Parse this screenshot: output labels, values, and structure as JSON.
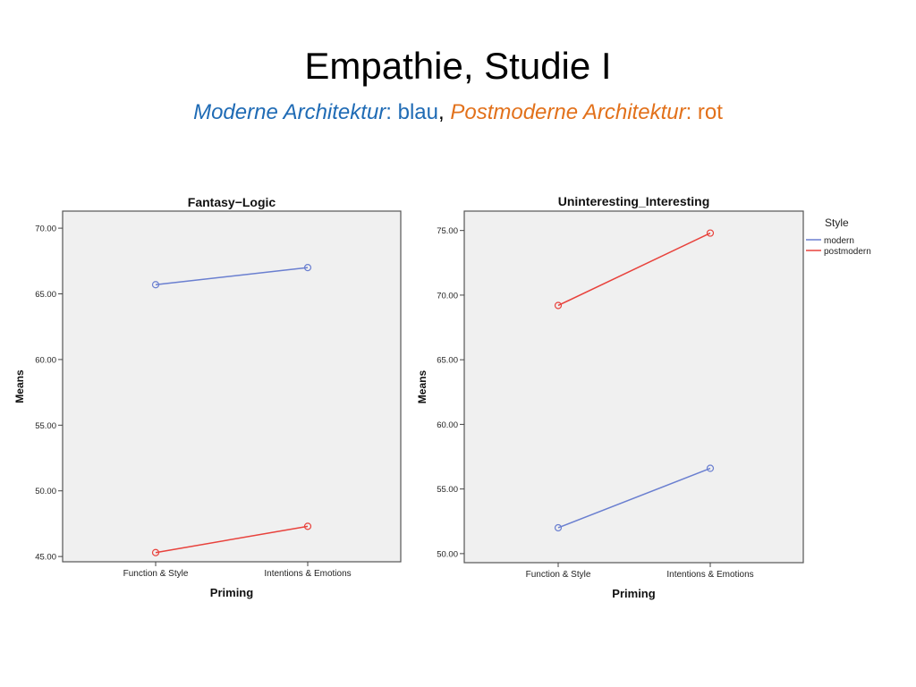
{
  "slide": {
    "title": "Empathie, Studie I",
    "subtitle": {
      "part1": "Moderne Architektur",
      "part2": ": blau",
      "sep": ", ",
      "part3": "Postmoderne Architektur",
      "part4": ": rot",
      "blue": "#1f6bb5",
      "orange": "#e2711b"
    }
  },
  "legend": {
    "title": "Style",
    "items": [
      {
        "label": "modern",
        "color": "#6a7fd0"
      },
      {
        "label": "postmodern",
        "color": "#e8423c"
      }
    ]
  },
  "chart_data": [
    {
      "type": "line",
      "title": "Fantasy−Logic",
      "xlabel": "Priming",
      "ylabel": "Means",
      "categories": [
        "Function & Style",
        "Intentions & Emotions"
      ],
      "ylim": [
        44.6,
        71.3
      ],
      "yticks": [
        "45.00",
        "50.00",
        "55.00",
        "60.00",
        "65.00",
        "70.00"
      ],
      "grid": false,
      "series": [
        {
          "name": "modern",
          "values": [
            65.7,
            67.0
          ],
          "color": "#6a7fd0"
        },
        {
          "name": "postmodern",
          "values": [
            45.3,
            47.3
          ],
          "color": "#e8423c"
        }
      ]
    },
    {
      "type": "line",
      "title": "Uninteresting_Interesting",
      "xlabel": "Priming",
      "ylabel": "Means",
      "categories": [
        "Function & Style",
        "Intentions & Emotions"
      ],
      "ylim": [
        49.3,
        76.5
      ],
      "yticks": [
        "50.00",
        "55.00",
        "60.00",
        "65.00",
        "70.00",
        "75.00"
      ],
      "grid": false,
      "legend": "right",
      "series": [
        {
          "name": "modern",
          "values": [
            52.0,
            56.6
          ],
          "color": "#6a7fd0"
        },
        {
          "name": "postmodern",
          "values": [
            69.2,
            74.8
          ],
          "color": "#e8423c"
        }
      ]
    }
  ]
}
